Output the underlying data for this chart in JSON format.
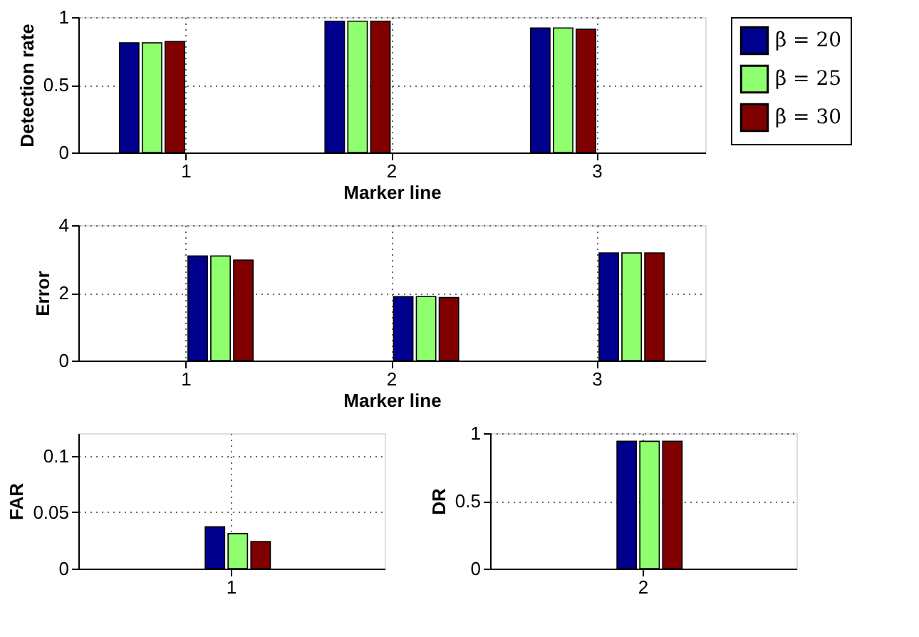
{
  "chart_data": [
    {
      "type": "bar",
      "ylabel": "Detection rate",
      "xlabel": "Marker line",
      "categories": [
        "1",
        "2",
        "3"
      ],
      "series": [
        {
          "name": "β = 20",
          "color": "#00008f",
          "values": [
            0.81,
            0.97,
            0.92
          ]
        },
        {
          "name": "β = 25",
          "color": "#8fff6f",
          "values": [
            0.81,
            0.97,
            0.92
          ]
        },
        {
          "name": "β = 30",
          "color": "#800000",
          "values": [
            0.82,
            0.97,
            0.91
          ]
        }
      ],
      "ylim": [
        0,
        1
      ],
      "yticks": [
        0,
        0.5,
        1
      ],
      "grid": true,
      "legend": "right"
    },
    {
      "type": "bar",
      "ylabel": "Error",
      "xlabel": "Marker line",
      "categories": [
        "1",
        "2",
        "3"
      ],
      "series": [
        {
          "color": "#00008f",
          "values": [
            3.09,
            1.89,
            3.18
          ]
        },
        {
          "color": "#8fff6f",
          "values": [
            3.09,
            1.89,
            3.18
          ]
        },
        {
          "color": "#800000",
          "values": [
            2.97,
            1.86,
            3.18
          ]
        }
      ],
      "ylim": [
        0,
        4
      ],
      "yticks": [
        0,
        2,
        4
      ],
      "grid": true
    },
    {
      "type": "bar",
      "ylabel": "FAR",
      "categories": [
        "1"
      ],
      "series": [
        {
          "color": "#00008f",
          "values": [
            0.037
          ]
        },
        {
          "color": "#8fff6f",
          "values": [
            0.031
          ]
        },
        {
          "color": "#800000",
          "values": [
            0.024
          ]
        }
      ],
      "ylim": [
        0,
        0.12
      ],
      "yticks": [
        0,
        0.05,
        0.1
      ],
      "grid": true
    },
    {
      "type": "bar",
      "ylabel": "DR",
      "categories": [
        "2"
      ],
      "series": [
        {
          "color": "#00008f",
          "values": [
            0.94
          ]
        },
        {
          "color": "#8fff6f",
          "values": [
            0.94
          ]
        },
        {
          "color": "#800000",
          "values": [
            0.94
          ]
        }
      ],
      "ylim": [
        0,
        1
      ],
      "yticks": [
        0,
        0.5,
        1
      ],
      "grid": true
    }
  ]
}
